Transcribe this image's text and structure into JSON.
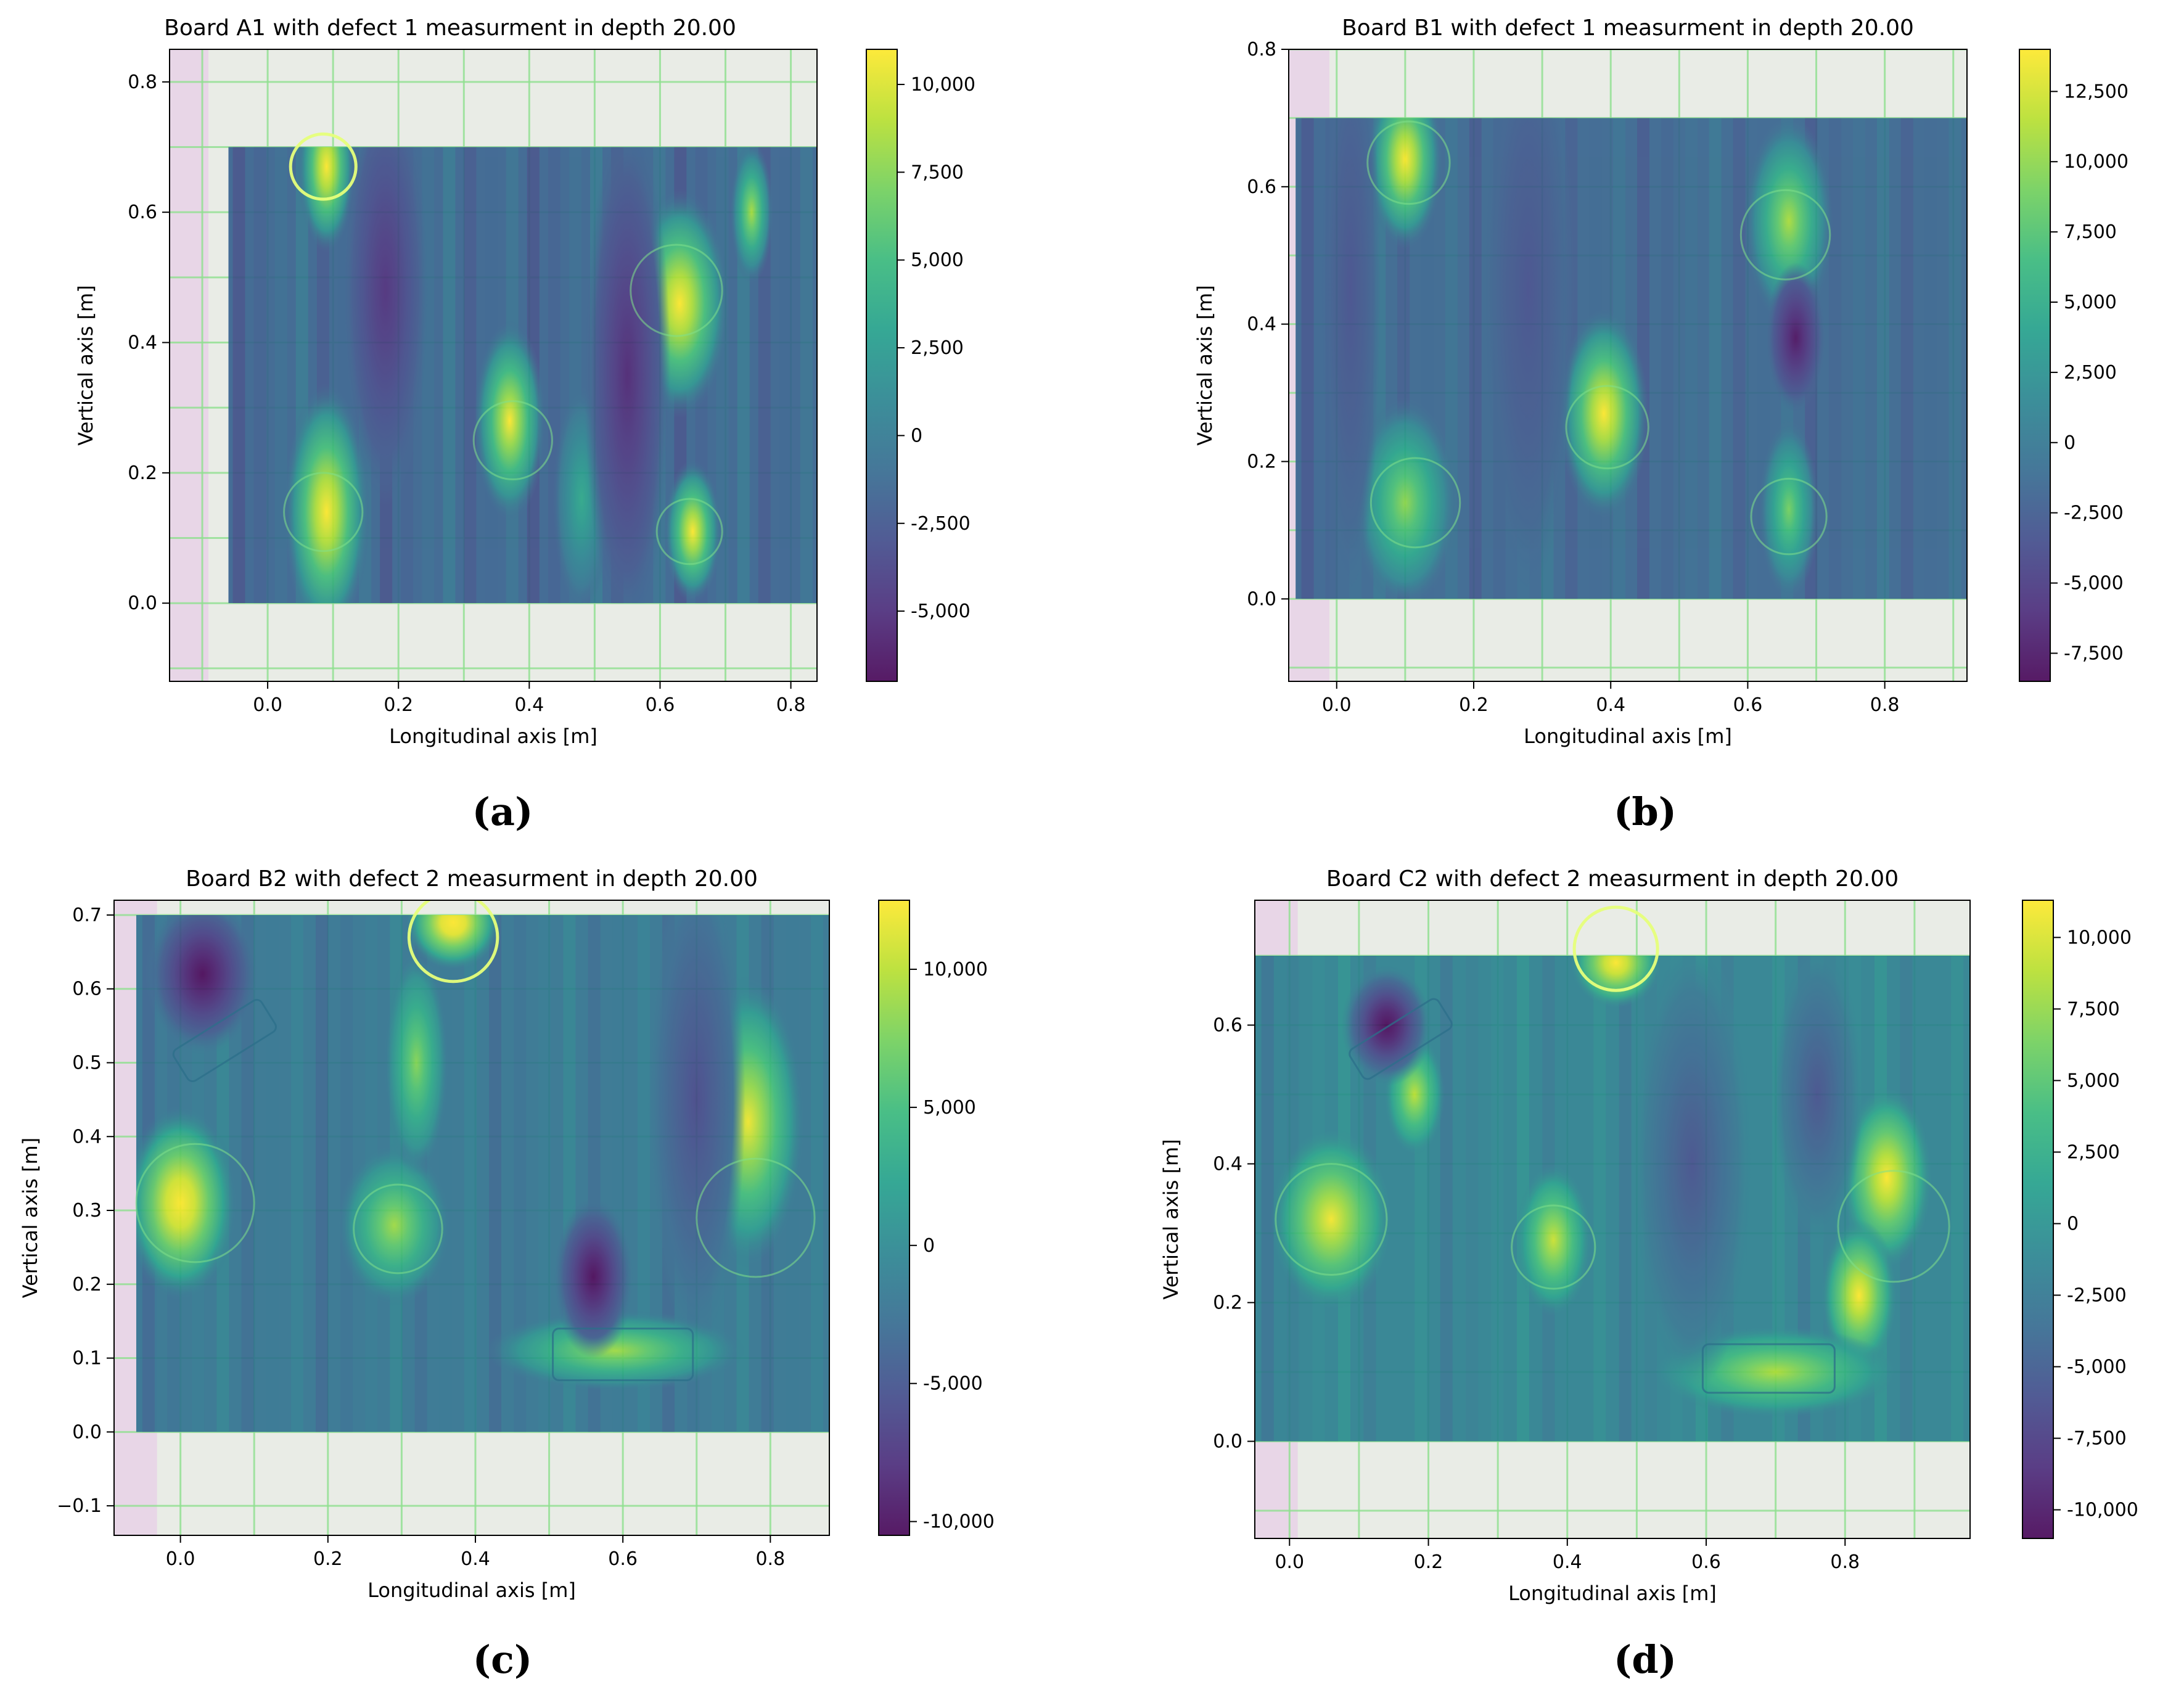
{
  "figure": {
    "captions": [
      "(a)",
      "(b)",
      "(c)",
      "(d)"
    ],
    "colors": {
      "viridis": [
        "#440154",
        "#482878",
        "#3e4989",
        "#31688e",
        "#26828e",
        "#1f9e89",
        "#35b779",
        "#6ece58",
        "#b5de2b",
        "#fde725"
      ],
      "board_background": "#e9ece6",
      "grid_line": "#8fe08f",
      "chalk_pink": "#e8b0e8"
    }
  },
  "chart_data": [
    {
      "type": "heatmap",
      "title": "Board A1 with defect 1 measurment in depth 20.00",
      "xlabel": "Longitudinal axis [m]",
      "ylabel": "Vertical axis [m]",
      "xlim": [
        -0.15,
        0.84
      ],
      "ylim": [
        -0.12,
        0.85
      ],
      "xticks": [
        0.0,
        0.2,
        0.4,
        0.6,
        0.8
      ],
      "xtick_labels": [
        "0.0",
        "0.2",
        "0.4",
        "0.6",
        "0.8"
      ],
      "yticks": [
        0.0,
        0.2,
        0.4,
        0.6,
        0.8
      ],
      "ytick_labels": [
        "0.0",
        "0.2",
        "0.4",
        "0.6",
        "0.8"
      ],
      "data_extent": {
        "x": [
          -0.06,
          0.84
        ],
        "y": [
          0.0,
          0.7
        ]
      },
      "baseline": -1500,
      "blobs": [
        {
          "x": 0.09,
          "y": 0.67,
          "sx": 0.02,
          "sy": 0.06,
          "v": 12000
        },
        {
          "x": 0.09,
          "y": 0.14,
          "sx": 0.03,
          "sy": 0.09,
          "v": 12000
        },
        {
          "x": 0.37,
          "y": 0.28,
          "sx": 0.025,
          "sy": 0.07,
          "v": 11000
        },
        {
          "x": 0.63,
          "y": 0.46,
          "sx": 0.035,
          "sy": 0.08,
          "v": 12000
        },
        {
          "x": 0.65,
          "y": 0.11,
          "sx": 0.02,
          "sy": 0.05,
          "v": 11500
        },
        {
          "x": 0.74,
          "y": 0.6,
          "sx": 0.015,
          "sy": 0.05,
          "v": 8500
        },
        {
          "x": 0.48,
          "y": 0.16,
          "sx": 0.02,
          "sy": 0.08,
          "v": 3500
        },
        {
          "x": 0.18,
          "y": 0.48,
          "sx": 0.03,
          "sy": 0.15,
          "v": -5000
        },
        {
          "x": 0.55,
          "y": 0.35,
          "sx": 0.03,
          "sy": 0.18,
          "v": -5500
        }
      ],
      "defects": [
        {
          "shape": "circle",
          "x": 0.085,
          "y": 0.67,
          "r": 0.05,
          "bright": true
        },
        {
          "shape": "circle",
          "x": 0.085,
          "y": 0.14,
          "r": 0.06,
          "bright": false
        },
        {
          "shape": "circle",
          "x": 0.375,
          "y": 0.25,
          "r": 0.06,
          "bright": false
        },
        {
          "shape": "circle",
          "x": 0.625,
          "y": 0.48,
          "r": 0.07,
          "bright": false
        },
        {
          "shape": "circle",
          "x": 0.645,
          "y": 0.11,
          "r": 0.05,
          "bright": false
        }
      ],
      "colorbar": {
        "vmin": -7000,
        "vmax": 11000,
        "ticks": [
          -5000,
          -2500,
          0,
          2500,
          5000,
          7500,
          10000
        ],
        "tick_labels": [
          "-5,000",
          "-2,500",
          "0",
          "2,500",
          "5,000",
          "7,500",
          "10,000"
        ]
      }
    },
    {
      "type": "heatmap",
      "title": "Board B1 with defect 1 measurment in depth 20.00",
      "xlabel": "Longitudinal axis [m]",
      "ylabel": "Vertical axis [m]",
      "xlim": [
        -0.07,
        0.92
      ],
      "ylim": [
        -0.12,
        0.8
      ],
      "xticks": [
        0.0,
        0.2,
        0.4,
        0.6,
        0.8
      ],
      "xtick_labels": [
        "0.0",
        "0.2",
        "0.4",
        "0.6",
        "0.8"
      ],
      "yticks": [
        0.0,
        0.2,
        0.4,
        0.6,
        0.8
      ],
      "ytick_labels": [
        "0.0",
        "0.2",
        "0.4",
        "0.6",
        "0.8"
      ],
      "data_extent": {
        "x": [
          -0.06,
          0.92
        ],
        "y": [
          0.0,
          0.7
        ]
      },
      "baseline": -1500,
      "blobs": [
        {
          "x": 0.1,
          "y": 0.64,
          "sx": 0.025,
          "sy": 0.06,
          "v": 15000
        },
        {
          "x": 0.1,
          "y": 0.14,
          "sx": 0.035,
          "sy": 0.07,
          "v": 10000
        },
        {
          "x": 0.39,
          "y": 0.27,
          "sx": 0.03,
          "sy": 0.07,
          "v": 15000
        },
        {
          "x": 0.66,
          "y": 0.55,
          "sx": 0.03,
          "sy": 0.07,
          "v": 11000
        },
        {
          "x": 0.66,
          "y": 0.13,
          "sx": 0.02,
          "sy": 0.06,
          "v": 9000
        },
        {
          "x": 0.67,
          "y": 0.38,
          "sx": 0.02,
          "sy": 0.05,
          "v": -8000
        },
        {
          "x": 0.28,
          "y": 0.45,
          "sx": 0.03,
          "sy": 0.2,
          "v": -3500
        },
        {
          "x": 0.02,
          "y": 0.45,
          "sx": 0.02,
          "sy": 0.2,
          "v": -3500
        }
      ],
      "defects": [
        {
          "shape": "circle",
          "x": 0.105,
          "y": 0.635,
          "r": 0.06,
          "bright": false
        },
        {
          "shape": "circle",
          "x": 0.115,
          "y": 0.14,
          "r": 0.065,
          "bright": false
        },
        {
          "shape": "circle",
          "x": 0.395,
          "y": 0.25,
          "r": 0.06,
          "bright": false
        },
        {
          "shape": "circle",
          "x": 0.655,
          "y": 0.53,
          "r": 0.065,
          "bright": false
        },
        {
          "shape": "circle",
          "x": 0.66,
          "y": 0.12,
          "r": 0.055,
          "bright": false
        }
      ],
      "colorbar": {
        "vmin": -8500,
        "vmax": 14000,
        "ticks": [
          -7500,
          -5000,
          -2500,
          0,
          2500,
          5000,
          7500,
          10000,
          12500
        ],
        "tick_labels": [
          "-7,500",
          "-5,000",
          "-2,500",
          "0",
          "2,500",
          "5,000",
          "7,500",
          "10,000",
          "12,500"
        ]
      }
    },
    {
      "type": "heatmap",
      "title": "Board B2 with defect 2 measurment in depth 20.00",
      "xlabel": "Longitudinal axis [m]",
      "ylabel": "Vertical axis [m]",
      "xlim": [
        -0.09,
        0.88
      ],
      "ylim": [
        -0.14,
        0.72
      ],
      "xticks": [
        0.0,
        0.2,
        0.4,
        0.6,
        0.8
      ],
      "xtick_labels": [
        "0.0",
        "0.2",
        "0.4",
        "0.6",
        "0.8"
      ],
      "yticks": [
        -0.1,
        0.0,
        0.1,
        0.2,
        0.3,
        0.4,
        0.5,
        0.6,
        0.7
      ],
      "ytick_labels": [
        "−0.1",
        "0.0",
        "0.1",
        "0.2",
        "0.3",
        "0.4",
        "0.5",
        "0.6",
        "0.7"
      ],
      "data_extent": {
        "x": [
          -0.06,
          0.88
        ],
        "y": [
          0.0,
          0.7
        ]
      },
      "baseline": -2000,
      "blobs": [
        {
          "x": 0.37,
          "y": 0.69,
          "sx": 0.03,
          "sy": 0.03,
          "v": 16000
        },
        {
          "x": 0.0,
          "y": 0.31,
          "sx": 0.035,
          "sy": 0.06,
          "v": 15000
        },
        {
          "x": 0.29,
          "y": 0.28,
          "sx": 0.035,
          "sy": 0.05,
          "v": 9000
        },
        {
          "x": 0.77,
          "y": 0.42,
          "sx": 0.035,
          "sy": 0.09,
          "v": 12000
        },
        {
          "x": 0.59,
          "y": 0.11,
          "sx": 0.08,
          "sy": 0.025,
          "v": 9000
        },
        {
          "x": 0.32,
          "y": 0.5,
          "sx": 0.02,
          "sy": 0.07,
          "v": 8000
        },
        {
          "x": 0.03,
          "y": 0.62,
          "sx": 0.035,
          "sy": 0.05,
          "v": -11000
        },
        {
          "x": 0.56,
          "y": 0.21,
          "sx": 0.025,
          "sy": 0.05,
          "v": -11000
        },
        {
          "x": 0.7,
          "y": 0.45,
          "sx": 0.03,
          "sy": 0.15,
          "v": -6000
        }
      ],
      "defects": [
        {
          "shape": "circle",
          "x": 0.37,
          "y": 0.67,
          "r": 0.06,
          "bright": true
        },
        {
          "shape": "circle",
          "x": 0.02,
          "y": 0.31,
          "r": 0.08,
          "bright": false
        },
        {
          "shape": "circle",
          "x": 0.295,
          "y": 0.275,
          "r": 0.06,
          "bright": false
        },
        {
          "shape": "circle",
          "x": 0.78,
          "y": 0.29,
          "r": 0.08,
          "bright": false
        },
        {
          "shape": "rect",
          "x": 0.6,
          "y": 0.105,
          "w": 0.19,
          "h": 0.07,
          "angle": 0
        },
        {
          "shape": "rect",
          "x": 0.06,
          "y": 0.53,
          "w": 0.14,
          "h": 0.05,
          "angle": 32
        }
      ],
      "colorbar": {
        "vmin": -10500,
        "vmax": 12500,
        "ticks": [
          -10000,
          -5000,
          0,
          5000,
          10000
        ],
        "tick_labels": [
          "-10,000",
          "-5,000",
          "0",
          "5,000",
          "10,000"
        ]
      }
    },
    {
      "type": "heatmap",
      "title": "Board C2 with defect 2 measurment in depth 20.00",
      "xlabel": "Longitudinal axis [m]",
      "ylabel": "Vertical axis [m]",
      "xlim": [
        -0.05,
        0.98
      ],
      "ylim": [
        -0.14,
        0.78
      ],
      "xticks": [
        0.0,
        0.2,
        0.4,
        0.6,
        0.8
      ],
      "xtick_labels": [
        "0.0",
        "0.2",
        "0.4",
        "0.6",
        "0.8"
      ],
      "yticks": [
        0.0,
        0.2,
        0.4,
        0.6
      ],
      "ytick_labels": [
        "0.0",
        "0.2",
        "0.4",
        "0.6"
      ],
      "data_extent": {
        "x": [
          -0.05,
          0.98
        ],
        "y": [
          0.0,
          0.7
        ]
      },
      "baseline": -1500,
      "blobs": [
        {
          "x": 0.47,
          "y": 0.69,
          "sx": 0.03,
          "sy": 0.03,
          "v": 13000
        },
        {
          "x": 0.06,
          "y": 0.32,
          "sx": 0.04,
          "sy": 0.06,
          "v": 11000
        },
        {
          "x": 0.38,
          "y": 0.29,
          "sx": 0.025,
          "sy": 0.05,
          "v": 9500
        },
        {
          "x": 0.86,
          "y": 0.38,
          "sx": 0.03,
          "sy": 0.06,
          "v": 12000
        },
        {
          "x": 0.82,
          "y": 0.21,
          "sx": 0.025,
          "sy": 0.05,
          "v": 12000
        },
        {
          "x": 0.7,
          "y": 0.1,
          "sx": 0.08,
          "sy": 0.03,
          "v": 8500
        },
        {
          "x": 0.18,
          "y": 0.5,
          "sx": 0.02,
          "sy": 0.04,
          "v": 9000
        },
        {
          "x": 0.14,
          "y": 0.6,
          "sx": 0.03,
          "sy": 0.04,
          "v": -12000
        },
        {
          "x": 0.58,
          "y": 0.4,
          "sx": 0.04,
          "sy": 0.15,
          "v": -6000
        },
        {
          "x": 0.76,
          "y": 0.5,
          "sx": 0.03,
          "sy": 0.1,
          "v": -6000
        }
      ],
      "defects": [
        {
          "shape": "circle",
          "x": 0.47,
          "y": 0.71,
          "r": 0.06,
          "bright": true
        },
        {
          "shape": "circle",
          "x": 0.06,
          "y": 0.32,
          "r": 0.08,
          "bright": false
        },
        {
          "shape": "circle",
          "x": 0.38,
          "y": 0.28,
          "r": 0.06,
          "bright": false
        },
        {
          "shape": "circle",
          "x": 0.87,
          "y": 0.31,
          "r": 0.08,
          "bright": false
        },
        {
          "shape": "rect",
          "x": 0.69,
          "y": 0.105,
          "w": 0.19,
          "h": 0.07,
          "angle": 0
        },
        {
          "shape": "rect",
          "x": 0.16,
          "y": 0.58,
          "w": 0.15,
          "h": 0.05,
          "angle": 32
        }
      ],
      "colorbar": {
        "vmin": -11000,
        "vmax": 11300,
        "ticks": [
          -10000,
          -7500,
          -5000,
          -2500,
          0,
          2500,
          5000,
          7500,
          10000
        ],
        "tick_labels": [
          "-10,000",
          "-7,500",
          "-5,000",
          "-2,500",
          "0",
          "2,500",
          "5,000",
          "7,500",
          "10,000"
        ]
      }
    }
  ]
}
